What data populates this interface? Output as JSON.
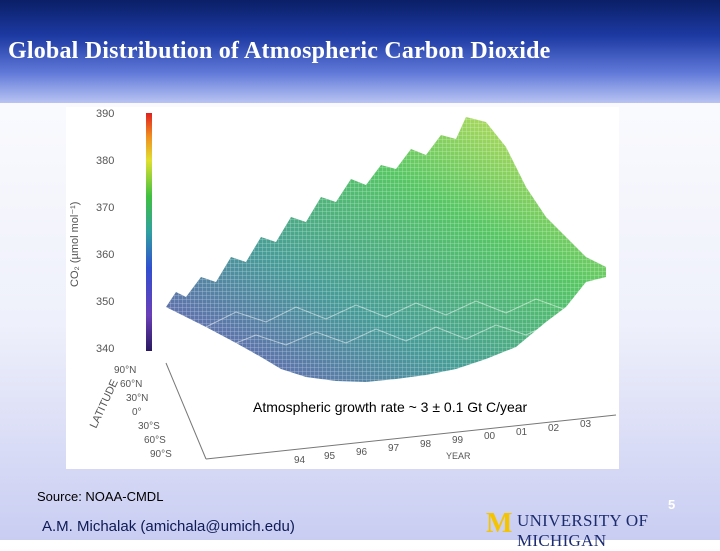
{
  "slide": {
    "title": "Global Distribution of Atmospheric Carbon Dioxide",
    "caption": "Atmospheric growth rate ~ 3 ± 0.1 Gt C/year",
    "source": "Source: NOAA-CMDL",
    "author": "A.M. Michalak (amichala@umich.edu)",
    "page_number": "5",
    "logo_text": "UNIVERSITY OF MICHIGAN",
    "logo_letter": "M"
  },
  "figure": {
    "y_axis_label": "CO₂ (µmol mol⁻¹)",
    "y_ticks": [
      "390",
      "380",
      "370",
      "360",
      "350",
      "340"
    ],
    "lat_label": "LATITUDE",
    "lat_ticks": [
      "90°N",
      "60°N",
      "30°N",
      "0°",
      "30°S",
      "60°S",
      "90°S"
    ],
    "year_label": "YEAR",
    "year_ticks": [
      "94",
      "95",
      "96",
      "97",
      "98",
      "99",
      "00",
      "01",
      "02",
      "03"
    ],
    "colors": {
      "low": "#6a3fb8",
      "mid": "#2f9a6a",
      "high": "#d8e040",
      "peak": "#e03020"
    }
  }
}
